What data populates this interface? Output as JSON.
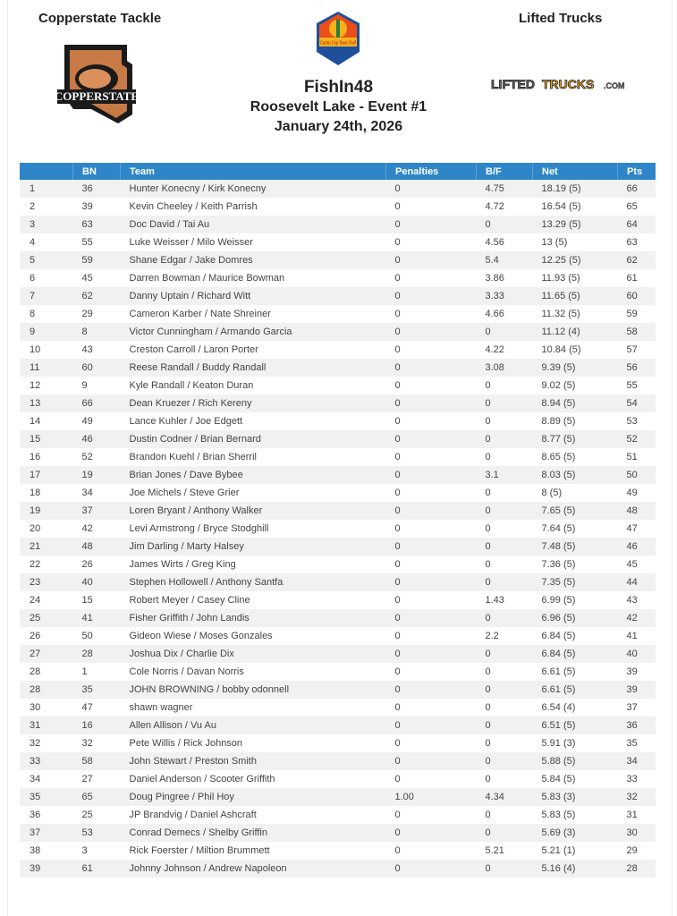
{
  "sponsors": {
    "left": "Copperstate Tackle",
    "right": "Lifted Trucks",
    "left_logo_text": "COPPERSTATE TACKLE",
    "center_logo_text": "Cactus Cup Team Trail",
    "right_logo_text": "LIFTEDTRUCKS.COM"
  },
  "event": {
    "name": "FishIn48",
    "subtitle": "Roosevelt Lake - Event #1",
    "date": "January 24th, 2026"
  },
  "colors": {
    "header": "#2e86c8",
    "stripe": "#f1f1f1"
  },
  "table": {
    "headers": [
      "",
      "BN",
      "Team",
      "Penalties",
      "B/F",
      "Net",
      "Pts"
    ],
    "rows": [
      [
        "1",
        "36",
        "Hunter Konecny / Kirk Konecny",
        "0",
        "4.75",
        "18.19 (5)",
        "66"
      ],
      [
        "2",
        "39",
        "Kevin Cheeley / Keith Parrish",
        "0",
        "4.72",
        "16.54 (5)",
        "65"
      ],
      [
        "3",
        "63",
        "Doc David / Tai Au",
        "0",
        "0",
        "13.29 (5)",
        "64"
      ],
      [
        "4",
        "55",
        "Luke Weisser / Milo Weisser",
        "0",
        "4.56",
        "13 (5)",
        "63"
      ],
      [
        "5",
        "59",
        "Shane Edgar / Jake Domres",
        "0",
        "5.4",
        "12.25 (5)",
        "62"
      ],
      [
        "6",
        "45",
        "Darren Bowman / Maurice Bowman",
        "0",
        "3.86",
        "11.93 (5)",
        "61"
      ],
      [
        "7",
        "62",
        "Danny Uptain / Richard Witt",
        "0",
        "3.33",
        "11.65 (5)",
        "60"
      ],
      [
        "8",
        "29",
        "Cameron Karber / Nate Shreiner",
        "0",
        "4.66",
        "11.32 (5)",
        "59"
      ],
      [
        "9",
        "8",
        "Victor Cunningham / Armando Garcia",
        "0",
        "0",
        "11.12 (4)",
        "58"
      ],
      [
        "10",
        "43",
        "Creston Carroll / Laron Porter",
        "0",
        "4.22",
        "10.84 (5)",
        "57"
      ],
      [
        "11",
        "60",
        "Reese Randall / Buddy Randall",
        "0",
        "3.08",
        "9.39 (5)",
        "56"
      ],
      [
        "12",
        "9",
        "Kyle Randall / Keaton Duran",
        "0",
        "0",
        "9.02 (5)",
        "55"
      ],
      [
        "13",
        "66",
        "Dean Kruezer / Rich Kereny",
        "0",
        "0",
        "8.94 (5)",
        "54"
      ],
      [
        "14",
        "49",
        "Lance Kuhler / Joe Edgett",
        "0",
        "0",
        "8.89 (5)",
        "53"
      ],
      [
        "15",
        "46",
        "Dustin Codner / Brian Bernard",
        "0",
        "0",
        "8.77 (5)",
        "52"
      ],
      [
        "16",
        "52",
        "Brandon Kuehl / Brian Sherril",
        "0",
        "0",
        "8.65 (5)",
        "51"
      ],
      [
        "17",
        "19",
        "Brian Jones / Dave Bybee",
        "0",
        "3.1",
        "8.03 (5)",
        "50"
      ],
      [
        "18",
        "34",
        "Joe Michels / Steve Grier",
        "0",
        "0",
        "8 (5)",
        "49"
      ],
      [
        "19",
        "37",
        "Loren Bryant / Anthony Walker",
        "0",
        "0",
        "7.65 (5)",
        "48"
      ],
      [
        "20",
        "42",
        "Levi Armstrong / Bryce Stodghill",
        "0",
        "0",
        "7.64 (5)",
        "47"
      ],
      [
        "21",
        "48",
        "Jim Darling / Marty Halsey",
        "0",
        "0",
        "7.48 (5)",
        "46"
      ],
      [
        "22",
        "26",
        "James Wirts / Greg King",
        "0",
        "0",
        "7.36 (5)",
        "45"
      ],
      [
        "23",
        "40",
        "Stephen Hollowell / Anthony Santfa",
        "0",
        "0",
        "7.35 (5)",
        "44"
      ],
      [
        "24",
        "15",
        "Robert Meyer / Casey Cline",
        "0",
        "1.43",
        "6.99 (5)",
        "43"
      ],
      [
        "25",
        "41",
        "Fisher Griffith / John Landis",
        "0",
        "0",
        "6.96 (5)",
        "42"
      ],
      [
        "26",
        "50",
        "Gideon Wiese / Moses Gonzales",
        "0",
        "2.2",
        "6.84 (5)",
        "41"
      ],
      [
        "27",
        "28",
        "Joshua Dix / Charlie Dix",
        "0",
        "0",
        "6.84 (5)",
        "40"
      ],
      [
        "28",
        "1",
        "Cole Norris / Davan Norris",
        "0",
        "0",
        "6.61 (5)",
        "39"
      ],
      [
        "28",
        "35",
        "JOHN BROWNING / bobby odonnell",
        "0",
        "0",
        "6.61 (5)",
        "39"
      ],
      [
        "30",
        "47",
        "shawn wagner",
        "0",
        "0",
        "6.54 (4)",
        "37"
      ],
      [
        "31",
        "16",
        "Allen Allison / Vu Au",
        "0",
        "0",
        "6.51 (5)",
        "36"
      ],
      [
        "32",
        "32",
        "Pete Willis / Rick Johnson",
        "0",
        "0",
        "5.91 (3)",
        "35"
      ],
      [
        "33",
        "58",
        "John Stewart / Preston Smith",
        "0",
        "0",
        "5.88 (5)",
        "34"
      ],
      [
        "34",
        "27",
        "Daniel Anderson / Scooter Griffith",
        "0",
        "0",
        "5.84 (5)",
        "33"
      ],
      [
        "35",
        "65",
        "Doug Pingree / Phil Hoy",
        "1.00",
        "4.34",
        "5.83 (3)",
        "32"
      ],
      [
        "36",
        "25",
        "JP Brandvig / Daniel Ashcraft",
        "0",
        "0",
        "5.83 (5)",
        "31"
      ],
      [
        "37",
        "53",
        "Conrad Demecs / Shelby Griffin",
        "0",
        "0",
        "5.69 (3)",
        "30"
      ],
      [
        "38",
        "3",
        "Rick Foerster / Miltion Brummett",
        "0",
        "5.21",
        "5.21 (1)",
        "29"
      ],
      [
        "39",
        "61",
        "Johnny Johnson / Andrew Napoleon",
        "0",
        "0",
        "5.16 (4)",
        "28"
      ]
    ]
  }
}
